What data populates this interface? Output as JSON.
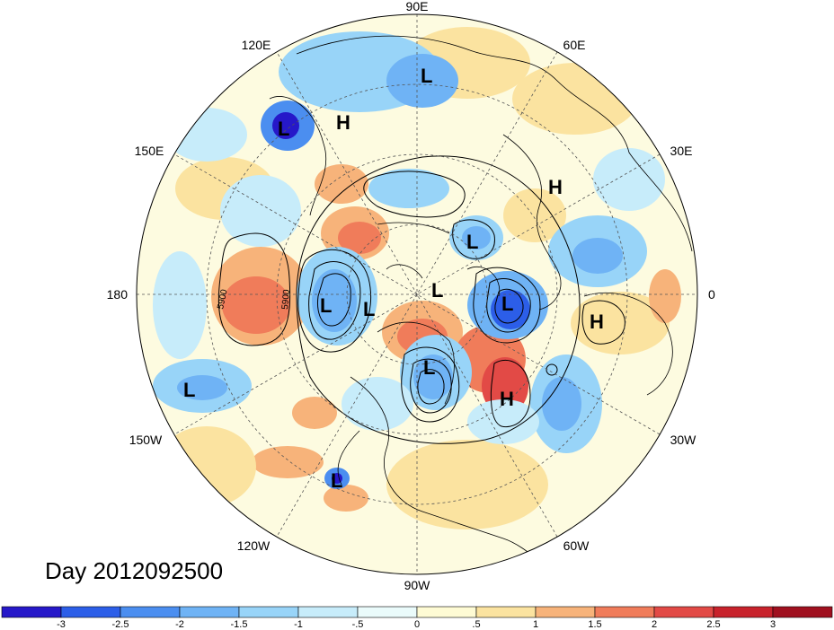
{
  "title": "Day 2012092500",
  "longitude_labels": [
    "90E",
    "60E",
    "30E",
    "0",
    "30W",
    "60W",
    "90W",
    "120W",
    "150W",
    "180",
    "150E",
    "120E"
  ],
  "pressure_centers": [
    {
      "kind": "L",
      "lon_lat_hint": "NE Asia"
    },
    {
      "kind": "L",
      "lon_lat_hint": "Kamchatka"
    },
    {
      "kind": "H",
      "lon_lat_hint": "E Siberia"
    },
    {
      "kind": "H",
      "lon_lat_hint": "Russia"
    },
    {
      "kind": "L",
      "lon_lat_hint": "Barents"
    },
    {
      "kind": "L",
      "lon_lat_hint": "Pole"
    },
    {
      "kind": "L",
      "lon_lat_hint": "Beaufort"
    },
    {
      "kind": "L",
      "lon_lat_hint": "Canada Arctic"
    },
    {
      "kind": "L",
      "lon_lat_hint": "Greenland-Iceland"
    },
    {
      "kind": "H",
      "lon_lat_hint": "NW Africa"
    },
    {
      "kind": "L",
      "lon_lat_hint": "Hudson Bay"
    },
    {
      "kind": "H",
      "lon_lat_hint": "N Atlantic"
    },
    {
      "kind": "L",
      "lon_lat_hint": "NE Pacific"
    },
    {
      "kind": "L",
      "lon_lat_hint": "E Pacific"
    }
  ],
  "contour_labels": [
    "5900",
    "5900"
  ],
  "colorbar": {
    "ticks": [
      "-3",
      "-2.5",
      "-2",
      "-1.5",
      "-1",
      "-.5",
      "0",
      ".5",
      "1",
      "1.5",
      "2",
      "2.5",
      "3"
    ],
    "colors": [
      "#2618c9",
      "#2c5ee8",
      "#4b8ef0",
      "#6fb3f5",
      "#98d4f8",
      "#c7ecfa",
      "#eafbfb",
      "#fefbd4",
      "#fbe3a0",
      "#f7b37a",
      "#f07c5a",
      "#e24a46",
      "#c8222c",
      "#a0101f"
    ]
  }
}
